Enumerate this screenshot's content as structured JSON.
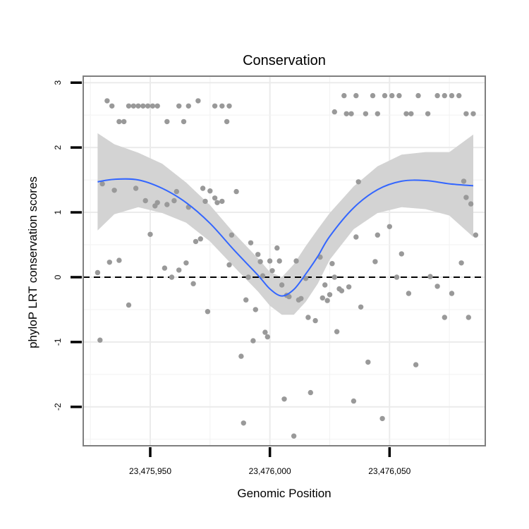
{
  "chart_data": {
    "type": "scatter",
    "title": "Conservation",
    "xlabel": "Genomic Position",
    "ylabel": "phyloP LRT conservation scores",
    "xlim": [
      23475922,
      23476090
    ],
    "ylim": [
      -2.6,
      3.1
    ],
    "x_ticks": [
      {
        "value": 23475950,
        "label": "23,475,950"
      },
      {
        "value": 23476000,
        "label": "23,476,000"
      },
      {
        "value": 23476050,
        "label": "23,476,050"
      }
    ],
    "y_ticks": [
      {
        "value": -2,
        "label": "-2"
      },
      {
        "value": -1,
        "label": "-1"
      },
      {
        "value": 0,
        "label": "0"
      },
      {
        "value": 1,
        "label": "1"
      },
      {
        "value": 2,
        "label": "2"
      },
      {
        "value": 3,
        "label": "3"
      }
    ],
    "grid": true,
    "reference_line": {
      "y": 0,
      "style": "dashed",
      "color": "#000000"
    },
    "colors": {
      "points": "#999999",
      "smooth_line": "#3366FF",
      "confidence_band": "#D3D3D3",
      "panel_border": "#7f7f7f"
    },
    "points": [
      {
        "x": 23475932,
        "y": 2.72
      },
      {
        "x": 23475934,
        "y": 2.64
      },
      {
        "x": 23475937,
        "y": 2.4
      },
      {
        "x": 23475939,
        "y": 2.4
      },
      {
        "x": 23475941,
        "y": 2.64
      },
      {
        "x": 23475943,
        "y": 2.64
      },
      {
        "x": 23475945,
        "y": 2.64
      },
      {
        "x": 23475947,
        "y": 2.64
      },
      {
        "x": 23475949,
        "y": 2.64
      },
      {
        "x": 23475951,
        "y": 2.64
      },
      {
        "x": 23475953,
        "y": 2.64
      },
      {
        "x": 23475957,
        "y": 2.4
      },
      {
        "x": 23475962,
        "y": 2.64
      },
      {
        "x": 23475964,
        "y": 2.4
      },
      {
        "x": 23475966,
        "y": 2.64
      },
      {
        "x": 23475970,
        "y": 2.72
      },
      {
        "x": 23475977,
        "y": 2.64
      },
      {
        "x": 23475980,
        "y": 2.64
      },
      {
        "x": 23475983,
        "y": 2.64
      },
      {
        "x": 23475982,
        "y": 2.4
      },
      {
        "x": 23476027,
        "y": 2.55
      },
      {
        "x": 23476031,
        "y": 2.8
      },
      {
        "x": 23476032,
        "y": 2.52
      },
      {
        "x": 23476034,
        "y": 2.52
      },
      {
        "x": 23476036,
        "y": 2.8
      },
      {
        "x": 23476040,
        "y": 2.52
      },
      {
        "x": 23476043,
        "y": 2.8
      },
      {
        "x": 23476045,
        "y": 2.52
      },
      {
        "x": 23476048,
        "y": 2.8
      },
      {
        "x": 23476051,
        "y": 2.8
      },
      {
        "x": 23476054,
        "y": 2.8
      },
      {
        "x": 23476057,
        "y": 2.52
      },
      {
        "x": 23476059,
        "y": 2.52
      },
      {
        "x": 23476062,
        "y": 2.8
      },
      {
        "x": 23476066,
        "y": 2.52
      },
      {
        "x": 23476070,
        "y": 2.8
      },
      {
        "x": 23476073,
        "y": 2.8
      },
      {
        "x": 23476076,
        "y": 2.8
      },
      {
        "x": 23476079,
        "y": 2.8
      },
      {
        "x": 23476082,
        "y": 2.52
      },
      {
        "x": 23476085,
        "y": 2.52
      },
      {
        "x": 23475928,
        "y": 0.07
      },
      {
        "x": 23475929,
        "y": -0.97
      },
      {
        "x": 23475930,
        "y": 1.44
      },
      {
        "x": 23475933,
        "y": 0.23
      },
      {
        "x": 23475935,
        "y": 1.34
      },
      {
        "x": 23475937,
        "y": 0.26
      },
      {
        "x": 23475941,
        "y": -0.43
      },
      {
        "x": 23475944,
        "y": 1.37
      },
      {
        "x": 23475948,
        "y": 1.18
      },
      {
        "x": 23475950,
        "y": 0.66
      },
      {
        "x": 23475952,
        "y": 1.1
      },
      {
        "x": 23475953,
        "y": 1.15
      },
      {
        "x": 23475956,
        "y": 0.14
      },
      {
        "x": 23475957,
        "y": 1.12
      },
      {
        "x": 23475959,
        "y": 0.0
      },
      {
        "x": 23475960,
        "y": 1.18
      },
      {
        "x": 23475961,
        "y": 1.32
      },
      {
        "x": 23475962,
        "y": 0.11
      },
      {
        "x": 23475965,
        "y": 0.22
      },
      {
        "x": 23475966,
        "y": 1.08
      },
      {
        "x": 23475968,
        "y": -0.1
      },
      {
        "x": 23475969,
        "y": 0.55
      },
      {
        "x": 23475971,
        "y": 0.59
      },
      {
        "x": 23475972,
        "y": 1.37
      },
      {
        "x": 23475973,
        "y": 1.17
      },
      {
        "x": 23475974,
        "y": -0.53
      },
      {
        "x": 23475975,
        "y": 1.33
      },
      {
        "x": 23475977,
        "y": 1.22
      },
      {
        "x": 23475978,
        "y": 1.15
      },
      {
        "x": 23475980,
        "y": 1.17
      },
      {
        "x": 23475983,
        "y": 0.19
      },
      {
        "x": 23475984,
        "y": 0.65
      },
      {
        "x": 23475986,
        "y": 1.32
      },
      {
        "x": 23475988,
        "y": -1.22
      },
      {
        "x": 23475989,
        "y": -2.25
      },
      {
        "x": 23475990,
        "y": -0.35
      },
      {
        "x": 23475991,
        "y": 0.0
      },
      {
        "x": 23475992,
        "y": 0.53
      },
      {
        "x": 23475993,
        "y": -0.98
      },
      {
        "x": 23475994,
        "y": -0.5
      },
      {
        "x": 23475995,
        "y": 0.35
      },
      {
        "x": 23475996,
        "y": 0.24
      },
      {
        "x": 23475997,
        "y": 0.02
      },
      {
        "x": 23475998,
        "y": -0.85
      },
      {
        "x": 23475999,
        "y": -0.92
      },
      {
        "x": 23476000,
        "y": 0.25
      },
      {
        "x": 23476001,
        "y": 0.1
      },
      {
        "x": 23476003,
        "y": 0.45
      },
      {
        "x": 23476004,
        "y": 0.25
      },
      {
        "x": 23476005,
        "y": -0.12
      },
      {
        "x": 23476006,
        "y": -1.88
      },
      {
        "x": 23476007,
        "y": -0.28
      },
      {
        "x": 23476008,
        "y": -0.3
      },
      {
        "x": 23476010,
        "y": -2.45
      },
      {
        "x": 23476011,
        "y": 0.25
      },
      {
        "x": 23476012,
        "y": -0.35
      },
      {
        "x": 23476013,
        "y": -0.33
      },
      {
        "x": 23476015,
        "y": -0.02
      },
      {
        "x": 23476016,
        "y": -0.62
      },
      {
        "x": 23476017,
        "y": -1.78
      },
      {
        "x": 23476019,
        "y": -0.67
      },
      {
        "x": 23476021,
        "y": 0.31
      },
      {
        "x": 23476022,
        "y": -0.32
      },
      {
        "x": 23476023,
        "y": -0.12
      },
      {
        "x": 23476024,
        "y": -0.36
      },
      {
        "x": 23476025,
        "y": -0.27
      },
      {
        "x": 23476026,
        "y": 0.21
      },
      {
        "x": 23476027,
        "y": 0.0
      },
      {
        "x": 23476028,
        "y": -0.84
      },
      {
        "x": 23476029,
        "y": -0.18
      },
      {
        "x": 23476030,
        "y": -0.21
      },
      {
        "x": 23476033,
        "y": -0.15
      },
      {
        "x": 23476035,
        "y": -1.91
      },
      {
        "x": 23476036,
        "y": 0.62
      },
      {
        "x": 23476037,
        "y": 1.47
      },
      {
        "x": 23476038,
        "y": -0.46
      },
      {
        "x": 23476041,
        "y": -1.31
      },
      {
        "x": 23476044,
        "y": 0.24
      },
      {
        "x": 23476045,
        "y": 0.65
      },
      {
        "x": 23476047,
        "y": -2.18
      },
      {
        "x": 23476050,
        "y": 0.78
      },
      {
        "x": 23476053,
        "y": 0.0
      },
      {
        "x": 23476055,
        "y": 0.36
      },
      {
        "x": 23476058,
        "y": -0.25
      },
      {
        "x": 23476061,
        "y": -1.35
      },
      {
        "x": 23476067,
        "y": 0.01
      },
      {
        "x": 23476070,
        "y": -0.14
      },
      {
        "x": 23476073,
        "y": -0.62
      },
      {
        "x": 23476076,
        "y": -0.25
      },
      {
        "x": 23476080,
        "y": 0.22
      },
      {
        "x": 23476081,
        "y": 1.48
      },
      {
        "x": 23476082,
        "y": 1.23
      },
      {
        "x": 23476083,
        "y": -0.62
      },
      {
        "x": 23476084,
        "y": 1.13
      },
      {
        "x": 23476086,
        "y": 0.65
      }
    ],
    "smooth": {
      "x": [
        23475928,
        23475935,
        23475945,
        23475955,
        23475965,
        23475975,
        23475985,
        23475995,
        23476000,
        23476005,
        23476010,
        23476015,
        23476020,
        23476025,
        23476035,
        23476045,
        23476055,
        23476065,
        23476075,
        23476085
      ],
      "y": [
        1.47,
        1.51,
        1.5,
        1.37,
        1.15,
        0.83,
        0.42,
        0.03,
        -0.18,
        -0.29,
        -0.19,
        0.05,
        0.32,
        0.63,
        1.07,
        1.35,
        1.48,
        1.49,
        1.44,
        1.41
      ],
      "lower": [
        0.72,
        0.97,
        1.08,
        0.99,
        0.84,
        0.55,
        0.16,
        -0.22,
        -0.44,
        -0.58,
        -0.58,
        -0.38,
        -0.1,
        0.27,
        0.74,
        0.99,
        1.08,
        1.05,
        0.95,
        0.62
      ],
      "upper": [
        2.22,
        2.05,
        1.92,
        1.75,
        1.46,
        1.11,
        0.68,
        0.29,
        0.08,
        0.0,
        0.2,
        0.48,
        0.74,
        0.99,
        1.4,
        1.71,
        1.89,
        1.93,
        1.93,
        2.2
      ]
    }
  }
}
